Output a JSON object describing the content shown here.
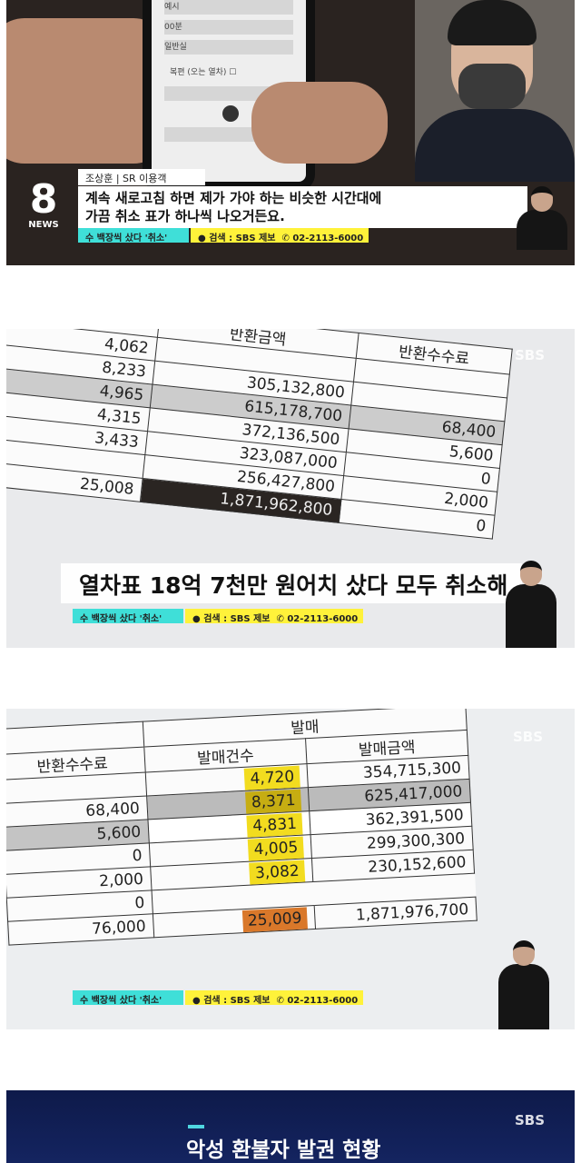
{
  "panel1": {
    "phone_screen": {
      "fields": [
        "예시",
        "00분",
        "일반실"
      ],
      "return_trip_label": "복편 (오는 열차)"
    },
    "speaker": "조상훈  |  SR 이용객",
    "caption_lines": [
      "계속 새로고침 하면 제가 가야 하는 비슷한 시간대에",
      "가끔 취소 표가 하나씩 나오거든요."
    ],
    "logo_number": "8",
    "logo_text": "NEWS"
  },
  "ticker": {
    "topic": "수 백장씩 샀다 '취소'",
    "search": "검색 : SBS 제보",
    "phone": "02-2113-6000",
    "colors": {
      "topic": "#3fdfd8",
      "search": "#fff23a"
    }
  },
  "panel2": {
    "watermark": "SBS",
    "header_refund_amount": "반환금액",
    "header_refund_fee": "반환수수료",
    "rows": [
      {
        "count": "4,062",
        "amount": "",
        "fee": ""
      },
      {
        "count": "8,233",
        "amount": "305,132,800",
        "fee": ""
      },
      {
        "count": "4,965",
        "amount": "615,178,700",
        "fee": "68,400"
      },
      {
        "count": "4,315",
        "amount": "372,136,500",
        "fee": "5,600"
      },
      {
        "count": "3,433",
        "amount": "323,087,000",
        "fee": "0"
      },
      {
        "count": "",
        "amount": "256,427,800",
        "fee": "2,000"
      }
    ],
    "total_count": "25,008",
    "total_amount": "1,871,962,800",
    "last_fee": "0",
    "headline": "열차표 18억 7천만 원어치 샀다 모두 취소해"
  },
  "panel3": {
    "watermark": "SBS",
    "group_header": "발매",
    "headers": {
      "fee": "반환수수료",
      "count": "발매건수",
      "amount": "발매금액"
    },
    "rows": [
      {
        "fee": "",
        "count": "4,720",
        "amount": "354,715,300"
      },
      {
        "fee": "68,400",
        "count": "8,371",
        "amount": "625,417,000"
      },
      {
        "fee": "5,600",
        "count": "4,831",
        "amount": "362,391,500"
      },
      {
        "fee": "0",
        "count": "4,005",
        "amount": "299,300,300"
      },
      {
        "fee": "2,000",
        "count": "3,082",
        "amount": "230,152,600"
      },
      {
        "fee": "0",
        "count": "",
        "amount": ""
      }
    ],
    "total": {
      "fee": "76,000",
      "count": "25,009",
      "amount": "1,871,976,700"
    },
    "highlight_colors": {
      "count": "#f2dc1f",
      "total": "#d9782a"
    }
  },
  "panel4": {
    "watermark": "SBS",
    "title": "악성 환불자 발권 현황"
  }
}
